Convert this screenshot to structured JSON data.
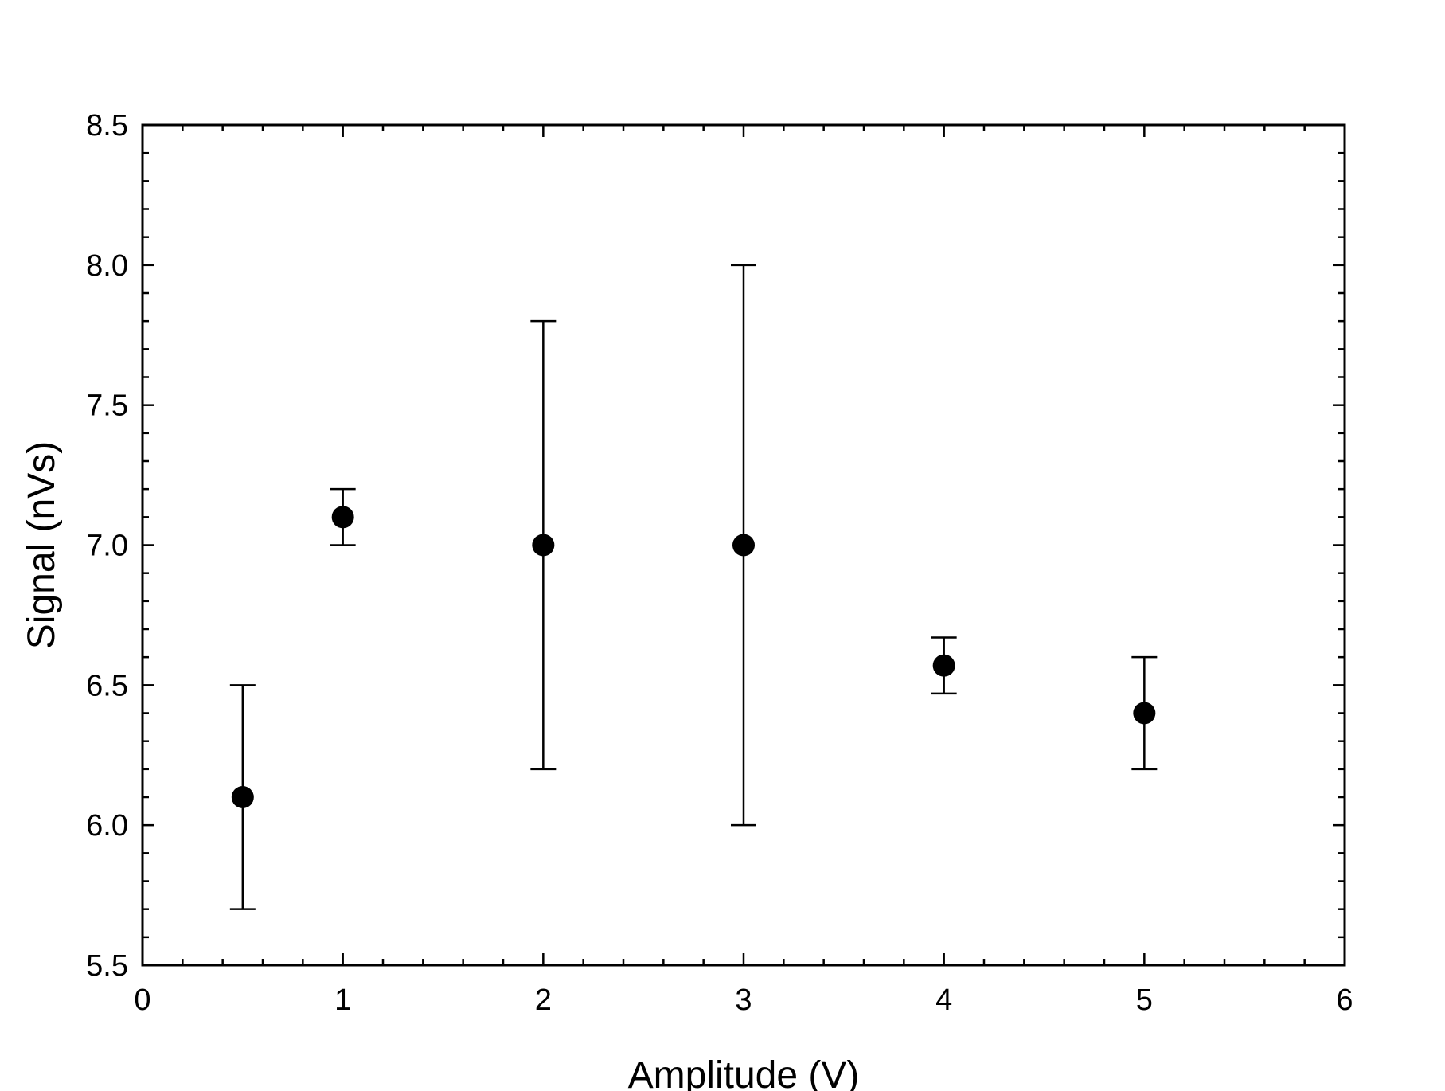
{
  "chart_data": {
    "type": "scatter",
    "title": "",
    "xlabel": "Amplitude (V)",
    "ylabel": "Signal (nVs)",
    "xlim": [
      0,
      6
    ],
    "ylim": [
      5.5,
      8.5
    ],
    "grid": false,
    "legend": "none",
    "x_ticks": [
      "0",
      "1",
      "2",
      "3",
      "4",
      "5",
      "6"
    ],
    "y_ticks": [
      "5.5",
      "6.0",
      "6.5",
      "7.0",
      "7.5",
      "8.0",
      "8.5"
    ],
    "series": [
      {
        "x": [
          0.5,
          1,
          2,
          3,
          4,
          5
        ],
        "y": [
          6.1,
          7.1,
          7.0,
          7.0,
          6.57,
          6.4
        ],
        "y_err_low": [
          5.7,
          7.0,
          6.2,
          6.0,
          6.47,
          6.2
        ],
        "y_err_high": [
          6.5,
          7.2,
          7.8,
          8.0,
          6.67,
          6.6
        ]
      }
    ],
    "marker_color": "#000000"
  }
}
